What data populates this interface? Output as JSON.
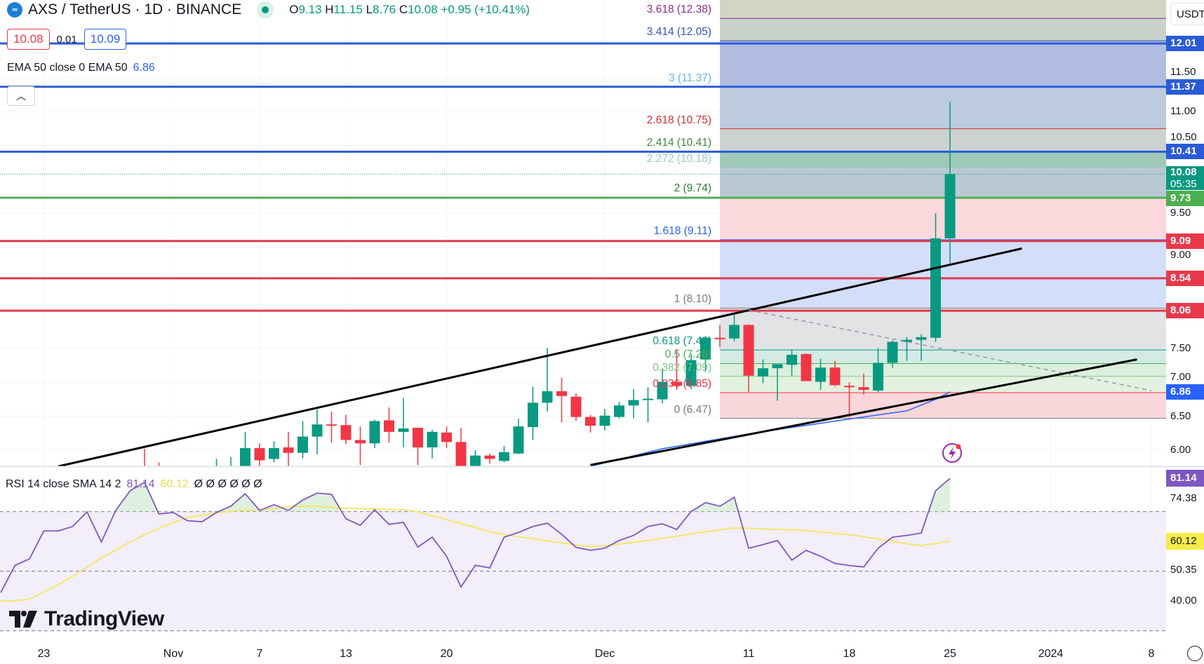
{
  "header": {
    "symbol_title": "AXS / TetherUS · 1D · BINANCE",
    "ohlc": {
      "o_label": "O",
      "o": "9.13",
      "h_label": "H",
      "h": "11.15",
      "l_label": "L",
      "l": "8.76",
      "c_label": "C",
      "c": "10.08",
      "change": "+0.95 (+10.41%)"
    },
    "sell_price": "10.08",
    "spread": "0.01",
    "buy_price": "10.09",
    "ema_legend": "EMA 50 close 0 EMA 50",
    "ema_value": "6.86",
    "collapse_icon": "chevron-up-icon",
    "currency_button": "USDT"
  },
  "colors": {
    "up": "#089981",
    "down": "#f23645",
    "ema": "#2962ff",
    "rsi": "#7e57c2",
    "rsi_sma": "#f5e66a",
    "accent_blue": "#2a5bd7"
  },
  "price_axis": {
    "ticks": [
      "11.50",
      "11.00",
      "10.50",
      "9.50",
      "9.00",
      "7.50",
      "7.00",
      "6.50",
      "6.00"
    ],
    "tags": [
      {
        "label": "12.01",
        "color": "#2a5bd7"
      },
      {
        "label": "11.37",
        "color": "#2a5bd7"
      },
      {
        "label": "10.41",
        "color": "#2a5bd7"
      },
      {
        "label": "10.08",
        "sub": "05:35",
        "color": "#089981"
      },
      {
        "label": "9.73",
        "color": "#4caf50"
      },
      {
        "label": "9.09",
        "color": "#e8394b"
      },
      {
        "label": "8.54",
        "color": "#e8394b"
      },
      {
        "label": "8.06",
        "color": "#e8394b"
      },
      {
        "label": "6.86",
        "color": "#2962ff"
      }
    ]
  },
  "horizontal_lines": [
    {
      "value": 12.01,
      "color": "#2a5bd7"
    },
    {
      "value": 11.37,
      "color": "#2a5bd7"
    },
    {
      "value": 10.41,
      "color": "#2a5bd7"
    },
    {
      "value": 9.73,
      "color": "#4caf50"
    },
    {
      "value": 9.09,
      "color": "#e03a4e"
    },
    {
      "value": 8.54,
      "color": "#e03a4e"
    },
    {
      "value": 8.06,
      "color": "#e03a4e"
    }
  ],
  "fib_extension": {
    "start_date": "2023-12-09",
    "levels": [
      {
        "label": "0 (6.47)",
        "value": 6.47,
        "color": "#787b86",
        "fill": "#f9d6d9"
      },
      {
        "label": "0.236 (6.85)",
        "value": 6.85,
        "color": "#f23645",
        "fill": "#e2f1e0"
      },
      {
        "label": "0.382 (7.09)",
        "value": 7.09,
        "color": "#81c784",
        "fill": "#dcefdc"
      },
      {
        "label": "0.5 (7.28)",
        "value": 7.28,
        "color": "#4caf50",
        "fill": "#d3ebe4"
      },
      {
        "label": "0.618 (7.48)",
        "value": 7.48,
        "color": "#089981",
        "fill": "#e1e3e5"
      },
      {
        "label": "1 (8.10)",
        "value": 8.1,
        "color": "#787b86",
        "fill": "#d3dffa"
      },
      {
        "label": "1.618 (9.11)",
        "value": 9.11,
        "color": "#2962ff",
        "fill": "#fad8db"
      },
      {
        "label": "2 (9.74)",
        "value": 9.74,
        "color": "#2e7d32",
        "fill": "#b8c9d3"
      },
      {
        "label": "2.272 (10.18)",
        "value": 10.18,
        "color": "#8fcfc3",
        "fill": "#9fc8b7"
      },
      {
        "label": "2.414 (10.41)",
        "value": 10.41,
        "color": "#388e3c",
        "fill": "#cdd1d0"
      },
      {
        "label": "2.618 (10.75)",
        "value": 10.75,
        "color": "#d32f2f",
        "fill": "#bdcbde"
      },
      {
        "label": "3 (11.37)",
        "value": 11.37,
        "color": "#64b5f6",
        "fill": "#b1bde0"
      },
      {
        "label": "3.414 (12.05)",
        "value": 12.05,
        "color": "#2f56b6",
        "fill": "#c9d3cb"
      },
      {
        "label": "3.618 (12.38)",
        "value": 12.38,
        "color": "#8e2b8e",
        "fill": "#d4d4c4"
      }
    ]
  },
  "chart_data": [
    {
      "type": "candlestick",
      "ylim": [
        5.76,
        12.65
      ],
      "columns": [
        "date",
        "open",
        "high",
        "low",
        "close"
      ],
      "candles": [
        [
          "2023-10-30",
          5.6,
          6.02,
          5.4,
          5.5
        ],
        [
          "2023-10-31",
          5.5,
          5.82,
          5.3,
          5.45
        ],
        [
          "2023-11-04",
          5.5,
          5.87,
          5.4,
          5.7
        ],
        [
          "2023-11-05",
          5.6,
          5.9,
          5.5,
          5.75
        ],
        [
          "2023-11-06",
          5.75,
          6.27,
          5.7,
          6.03
        ],
        [
          "2023-11-07",
          6.03,
          6.1,
          5.75,
          5.85
        ],
        [
          "2023-11-08",
          5.87,
          6.13,
          5.82,
          6.03
        ],
        [
          "2023-11-09",
          6.04,
          6.27,
          5.7,
          5.96
        ],
        [
          "2023-11-10",
          5.96,
          6.43,
          5.88,
          6.2
        ],
        [
          "2023-11-11",
          6.2,
          6.6,
          5.94,
          6.38
        ],
        [
          "2023-11-12",
          6.38,
          6.57,
          6.11,
          6.37
        ],
        [
          "2023-11-13",
          6.37,
          6.52,
          6.09,
          6.15
        ],
        [
          "2023-11-14",
          6.15,
          6.35,
          5.78,
          6.1
        ],
        [
          "2023-11-15",
          6.1,
          6.45,
          6.03,
          6.43
        ],
        [
          "2023-11-16",
          6.44,
          6.63,
          6.11,
          6.27
        ],
        [
          "2023-11-17",
          6.27,
          6.77,
          6.04,
          6.32
        ],
        [
          "2023-11-18",
          6.33,
          6.33,
          5.78,
          6.04
        ],
        [
          "2023-11-19",
          6.04,
          6.3,
          5.88,
          6.27
        ],
        [
          "2023-11-20",
          6.26,
          6.35,
          6.03,
          6.12
        ],
        [
          "2023-11-21",
          6.12,
          6.33,
          5.7,
          5.75
        ],
        [
          "2023-11-22",
          5.75,
          6.0,
          5.7,
          5.92
        ],
        [
          "2023-11-23",
          5.92,
          5.95,
          5.8,
          5.87
        ],
        [
          "2023-11-24",
          5.84,
          6.06,
          5.82,
          5.97
        ],
        [
          "2023-11-25",
          5.95,
          6.47,
          5.94,
          6.35
        ],
        [
          "2023-11-26",
          6.34,
          6.94,
          6.15,
          6.7
        ],
        [
          "2023-11-27",
          6.7,
          7.51,
          6.57,
          6.87
        ],
        [
          "2023-11-28",
          6.87,
          7.07,
          6.41,
          6.8
        ],
        [
          "2023-11-29",
          6.79,
          6.84,
          6.43,
          6.49
        ],
        [
          "2023-11-30",
          6.49,
          6.52,
          6.26,
          6.36
        ],
        [
          "2023-12-01",
          6.36,
          6.61,
          6.29,
          6.51
        ],
        [
          "2023-12-02",
          6.49,
          6.71,
          6.47,
          6.66
        ],
        [
          "2023-12-03",
          6.66,
          6.9,
          6.47,
          6.74
        ],
        [
          "2023-12-04",
          6.75,
          6.93,
          6.41,
          6.76
        ],
        [
          "2023-12-05",
          6.75,
          7.21,
          6.69,
          7.01
        ],
        [
          "2023-12-06",
          7.01,
          7.49,
          6.89,
          6.95
        ],
        [
          "2023-12-07",
          6.95,
          7.42,
          6.9,
          7.33
        ],
        [
          "2023-12-08",
          7.34,
          7.68,
          7.16,
          7.66
        ],
        [
          "2023-12-09",
          7.66,
          7.85,
          7.52,
          7.64
        ],
        [
          "2023-12-10",
          7.65,
          8.02,
          7.61,
          7.85
        ],
        [
          "2023-12-11",
          7.85,
          7.86,
          6.86,
          7.1
        ],
        [
          "2023-12-12",
          7.09,
          7.34,
          6.99,
          7.21
        ],
        [
          "2023-12-13",
          7.21,
          7.27,
          6.73,
          7.27
        ],
        [
          "2023-12-14",
          7.26,
          7.49,
          7.1,
          7.41
        ],
        [
          "2023-12-15",
          7.42,
          7.43,
          7.02,
          7.02
        ],
        [
          "2023-12-16",
          7.01,
          7.35,
          6.89,
          7.22
        ],
        [
          "2023-12-17",
          7.22,
          7.32,
          6.94,
          6.96
        ],
        [
          "2023-12-18",
          6.95,
          7.0,
          6.49,
          6.93
        ],
        [
          "2023-12-19",
          6.93,
          7.13,
          6.82,
          6.89
        ],
        [
          "2023-12-20",
          6.88,
          7.51,
          6.86,
          7.29
        ],
        [
          "2023-12-21",
          7.29,
          7.62,
          7.22,
          7.6
        ],
        [
          "2023-12-22",
          7.6,
          7.67,
          7.32,
          7.63
        ],
        [
          "2023-12-23",
          7.63,
          7.71,
          7.32,
          7.67
        ],
        [
          "2023-12-24",
          7.66,
          9.5,
          7.6,
          9.13
        ],
        [
          "2023-12-25",
          9.13,
          11.15,
          8.76,
          10.08
        ]
      ],
      "ema50": [
        [
          "2023-11-20",
          5.55
        ],
        [
          "2023-11-30",
          5.76
        ],
        [
          "2023-12-05",
          6.02
        ],
        [
          "2023-12-11",
          6.24
        ],
        [
          "2023-12-18",
          6.46
        ],
        [
          "2023-12-22",
          6.58
        ],
        [
          "2023-12-24",
          6.75
        ],
        [
          "2023-12-25",
          6.86
        ]
      ],
      "trendlines": [
        {
          "from": [
            "2023-10-24",
            5.76
          ],
          "to": [
            "2023-12-30",
            8.98
          ],
          "style": "solid"
        },
        {
          "from": [
            "2023-11-30",
            5.78
          ],
          "to": [
            "2024-01-07",
            7.34
          ],
          "style": "solid"
        },
        {
          "from": [
            "2023-12-11",
            8.07
          ],
          "to": [
            "2024-01-08",
            6.88
          ],
          "style": "dashed"
        }
      ],
      "current_price": 10.08
    },
    {
      "type": "line",
      "title": "RSI 14 close SMA 14 2",
      "first_date": "2023-10-20",
      "bands": [
        70,
        50,
        30
      ],
      "series": [
        {
          "name": "RSI",
          "last": "81.14",
          "values": [
            42.8,
            52.0,
            54.1,
            63.5,
            63.5,
            65.0,
            69.9,
            59.8,
            70.4,
            77,
            79.8,
            69.2,
            69.7,
            66.9,
            66.6,
            69.7,
            71.8,
            76,
            70.4,
            72.3,
            70.4,
            73.9,
            76.2,
            75.8,
            67.6,
            65.4,
            70.6,
            65.7,
            66.4,
            58.1,
            61.4,
            55,
            44.7,
            52,
            51.1,
            61.4,
            63,
            65,
            66.1,
            62.4,
            58,
            57,
            57.7,
            60.3,
            62,
            65,
            65.9,
            64,
            70,
            73,
            71.8,
            74.8,
            57.7,
            58.9,
            60.3,
            53.7,
            57,
            55,
            52.6,
            51.9,
            51.4,
            57.7,
            61.4,
            62,
            62.8,
            77,
            81.14
          ]
        },
        {
          "name": "SMA",
          "last": "60.12",
          "values": [
            40,
            40.1,
            40.6,
            43,
            45.5,
            48.3,
            51.3,
            54.5,
            57,
            59.8,
            62.2,
            64.4,
            66.3,
            68,
            68.8,
            69.6,
            70.1,
            70.5,
            70.6,
            71,
            71.6,
            71.8,
            71.8,
            71.5,
            71.1,
            71,
            70.9,
            70.7,
            70.6,
            69.9,
            68.6,
            67.3,
            66,
            64.7,
            63.2,
            62.3,
            61.6,
            60.9,
            60.2,
            59.5,
            58.8,
            58.2,
            58.5,
            59.1,
            59.7,
            60.3,
            61,
            61.7,
            62.5,
            63.2,
            63.9,
            64.5,
            64.4,
            64.2,
            64,
            63.9,
            63.7,
            63.2,
            62.7,
            62.2,
            61.6,
            60.8,
            60,
            59.2,
            58.6,
            59.3,
            60.12
          ]
        }
      ],
      "placeholders": [
        "Ø",
        "Ø",
        "Ø",
        "Ø",
        "Ø",
        "Ø"
      ],
      "axis_labels": [
        "74.38",
        "50.35",
        "40.00"
      ]
    }
  ],
  "time_axis": [
    {
      "label": "23",
      "date": "2023-10-23"
    },
    {
      "label": "Nov",
      "date": "2023-11-01"
    },
    {
      "label": "7",
      "date": "2023-11-07"
    },
    {
      "label": "13",
      "date": "2023-11-13"
    },
    {
      "label": "20",
      "date": "2023-11-20"
    },
    {
      "label": "Dec",
      "date": "2023-12-01"
    },
    {
      "label": "11",
      "date": "2023-12-11"
    },
    {
      "label": "18",
      "date": "2023-12-18"
    },
    {
      "label": "25",
      "date": "2023-12-25"
    },
    {
      "label": "2024",
      "date": "2024-01-01"
    },
    {
      "label": "8",
      "date": "2024-01-08"
    }
  ],
  "watermark": "TradingView"
}
